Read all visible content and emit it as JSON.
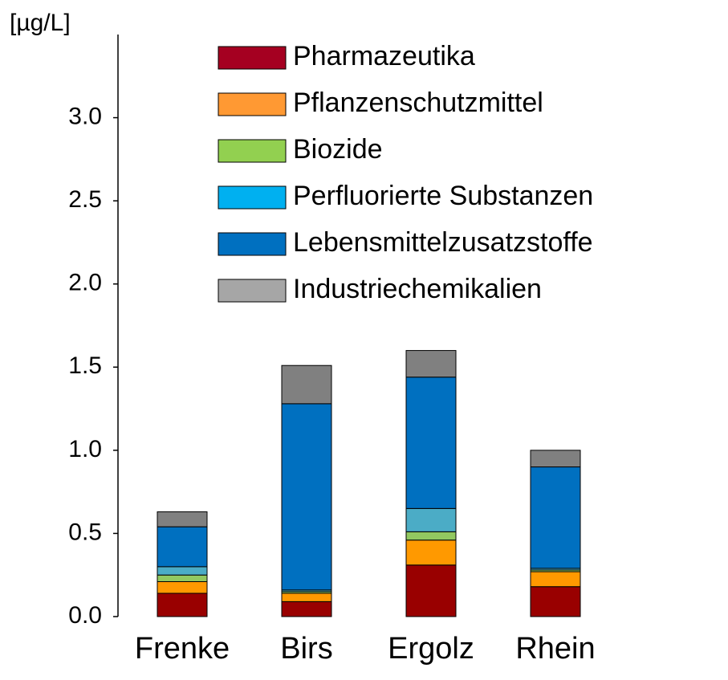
{
  "chart_data": {
    "type": "stacked_bar",
    "y_label": "[µg/L]",
    "categories": [
      "Frenke",
      "Birs",
      "Ergolz",
      "Rhein"
    ],
    "series": [
      {
        "name": "Pharmazeutika",
        "color": "#990000",
        "legend_color": "#a50021",
        "values": [
          0.14,
          0.09,
          0.31,
          0.18
        ]
      },
      {
        "name": "Pflanzenschutzmittel",
        "color": "#ff9900",
        "legend_color": "#ff9933",
        "values": [
          0.07,
          0.05,
          0.15,
          0.09
        ]
      },
      {
        "name": "Biozide",
        "color": "#92c860",
        "legend_color": "#92d050",
        "values": [
          0.04,
          0.01,
          0.05,
          0.01
        ]
      },
      {
        "name": "Perfluorierte Substanzen",
        "color": "#4bacc6",
        "legend_color": "#00b0f0",
        "values": [
          0.05,
          0.01,
          0.14,
          0.01
        ]
      },
      {
        "name": "Lebensmittelzusatzstoffe",
        "color": "#0070c0",
        "legend_color": "#0070c0",
        "values": [
          0.24,
          1.12,
          0.79,
          0.61
        ]
      },
      {
        "name": "Industriechemikalien",
        "color": "#808080",
        "legend_color": "#a6a6a6",
        "values": [
          0.09,
          0.23,
          0.16,
          0.1
        ]
      }
    ],
    "ylim": [
      0,
      3.5
    ],
    "yticks": [
      {
        "value": 0,
        "label": "0.0"
      },
      0.5,
      {
        "value": 1,
        "label": "1.0"
      },
      1.5,
      {
        "value": 2,
        "label": "2.0"
      },
      2.5,
      {
        "value": 3,
        "label": "3.0"
      }
    ],
    "legend": "top-right"
  }
}
